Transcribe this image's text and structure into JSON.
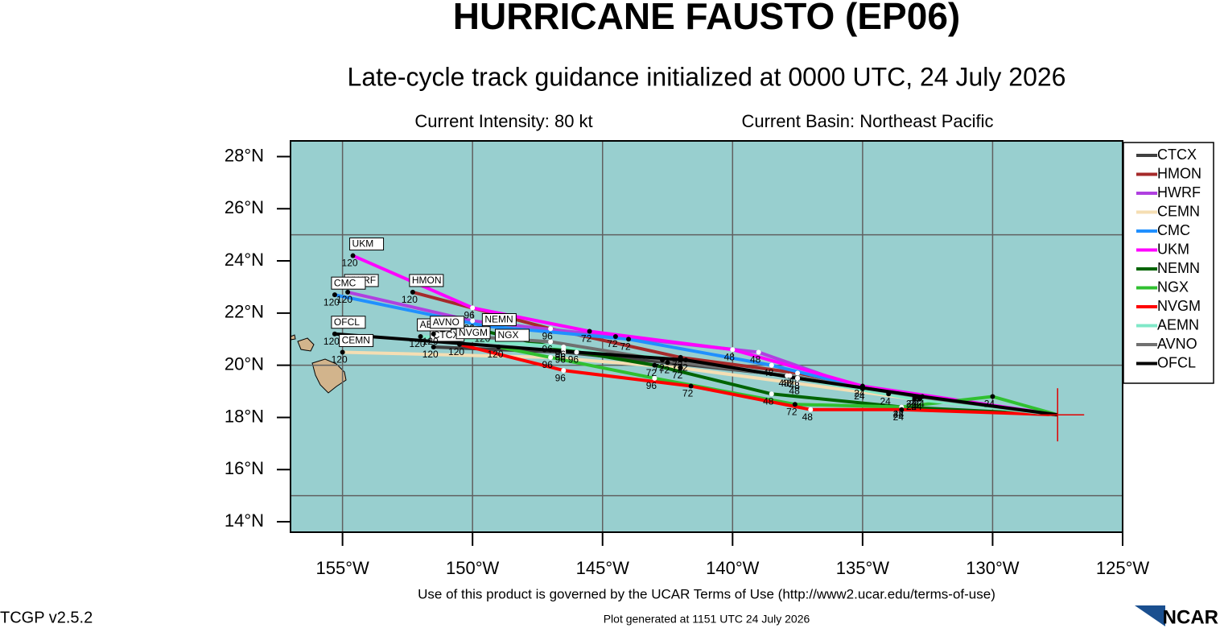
{
  "chart_data": {
    "type": "track",
    "title": "HURRICANE FAUSTO (EP06)",
    "subtitle": "Late-cycle track guidance initialized at 0000 UTC, 24 July 2026",
    "intensity": "Current Intensity: 80 kt",
    "basin": "Current Basin: Northeast Pacific",
    "footer": "Use of this product is governed by the UCAR Terms of Use (http://www2.ucar.edu/terms-of-use)",
    "version": "TCGP v2.5.2",
    "generated": "Plot generated at 1151 UTC   24 July 2026",
    "logo": "NCAR",
    "xlim": [
      -157,
      -125
    ],
    "ylim": [
      13.6,
      28.6
    ],
    "xticks": [
      {
        "value": -155,
        "label": "155°W"
      },
      {
        "value": -150,
        "label": "150°W"
      },
      {
        "value": -145,
        "label": "145°W"
      },
      {
        "value": -140,
        "label": "140°W"
      },
      {
        "value": -135,
        "label": "135°W"
      },
      {
        "value": -130,
        "label": "130°W"
      },
      {
        "value": -125,
        "label": "125°W"
      }
    ],
    "yticks": [
      {
        "value": 14,
        "label": "14°N"
      },
      {
        "value": 16,
        "label": "16°N"
      },
      {
        "value": 18,
        "label": "18°N"
      },
      {
        "value": 20,
        "label": "20°N"
      },
      {
        "value": 22,
        "label": "22°N"
      },
      {
        "value": 24,
        "label": "24°N"
      },
      {
        "value": 26,
        "label": "26°N"
      },
      {
        "value": 28,
        "label": "28°N"
      }
    ],
    "xgrid": [
      -155,
      -150,
      -145,
      -140,
      -135,
      -130
    ],
    "ygrid": [
      15,
      20,
      25
    ],
    "current_position": {
      "lon": -127.5,
      "lat": 18.1
    },
    "hours": [
      0,
      24,
      48,
      72,
      96,
      120
    ],
    "series": [
      {
        "name": "CTCX",
        "color": "#404040",
        "x": [
          -127.5,
          -132.8,
          -137.8,
          -142.5,
          -146.5,
          -151.5
        ],
        "values": [
          18.1,
          18.7,
          19.6,
          20.1,
          20.5,
          20.7
        ]
      },
      {
        "name": "HMON",
        "color": "#a52a2a",
        "x": [
          -127.5,
          -133.0,
          -137.5,
          -142.0,
          -147.0,
          -152.3
        ],
        "values": [
          18.1,
          18.8,
          19.7,
          20.3,
          21.4,
          22.8
        ]
      },
      {
        "name": "HWRF",
        "color": "#b040e0",
        "x": [
          -127.5,
          -135.0,
          -139.0,
          -144.5,
          -150.0,
          -154.8
        ],
        "values": [
          18.1,
          19.1,
          20.5,
          21.1,
          21.7,
          22.8
        ]
      },
      {
        "name": "CEMN",
        "color": "#f5deb3",
        "x": [
          -127.5,
          -133.0,
          -137.5,
          -142.0,
          -147.0,
          -155.0
        ],
        "values": [
          18.1,
          18.7,
          19.3,
          19.9,
          20.3,
          20.5
        ]
      },
      {
        "name": "CMC",
        "color": "#2090ff",
        "x": [
          -127.5,
          -134.0,
          -138.5,
          -144.0,
          -149.5,
          -155.3
        ],
        "values": [
          18.1,
          18.9,
          20.0,
          21.0,
          21.5,
          22.7
        ]
      },
      {
        "name": "UKM",
        "color": "#ff00ff",
        "x": [
          -127.5,
          -135.0,
          -140.0,
          -145.5,
          -150.0,
          -154.6
        ],
        "values": [
          18.1,
          19.2,
          20.6,
          21.3,
          22.2,
          24.2
        ]
      },
      {
        "name": "NEMN",
        "color": "#006400",
        "x": [
          -127.5,
          -133.5,
          -138.5,
          -143.0,
          -146.5,
          -149.5
        ],
        "values": [
          18.1,
          18.4,
          18.9,
          20.0,
          20.6,
          21.3
        ]
      },
      {
        "name": "NGX",
        "color": "#30c030",
        "x": [
          -127.5,
          -130.0,
          -133.5,
          -137.6,
          -143.0,
          -149.0
        ],
        "values": [
          18.1,
          18.8,
          18.4,
          18.5,
          19.5,
          20.7
        ]
      },
      {
        "name": "NVGM",
        "color": "#ff0000",
        "x": [
          -127.5,
          -133.5,
          -137.0,
          -141.6,
          -146.5,
          -150.5
        ],
        "values": [
          18.1,
          18.3,
          18.3,
          19.2,
          19.8,
          20.8
        ]
      },
      {
        "name": "AEMN",
        "color": "#80e8c8",
        "x": [
          -127.5,
          -133.0,
          -137.5,
          -142.0,
          -146.5,
          -152.0
        ],
        "values": [
          18.1,
          18.7,
          19.5,
          20.2,
          20.7,
          21.1
        ]
      },
      {
        "name": "AVNO",
        "color": "#707070",
        "x": [
          -127.5,
          -132.9,
          -137.9,
          -142.7,
          -147.0,
          -151.5
        ],
        "values": [
          18.1,
          18.8,
          19.6,
          20.2,
          20.9,
          21.2
        ]
      },
      {
        "name": "OFCL",
        "color": "#000000",
        "x": [
          -127.5,
          -132.7,
          -137.5,
          -141.8,
          -146.0,
          -155.3
        ],
        "values": [
          18.1,
          18.8,
          19.5,
          20.2,
          20.5,
          21.2
        ]
      }
    ]
  }
}
